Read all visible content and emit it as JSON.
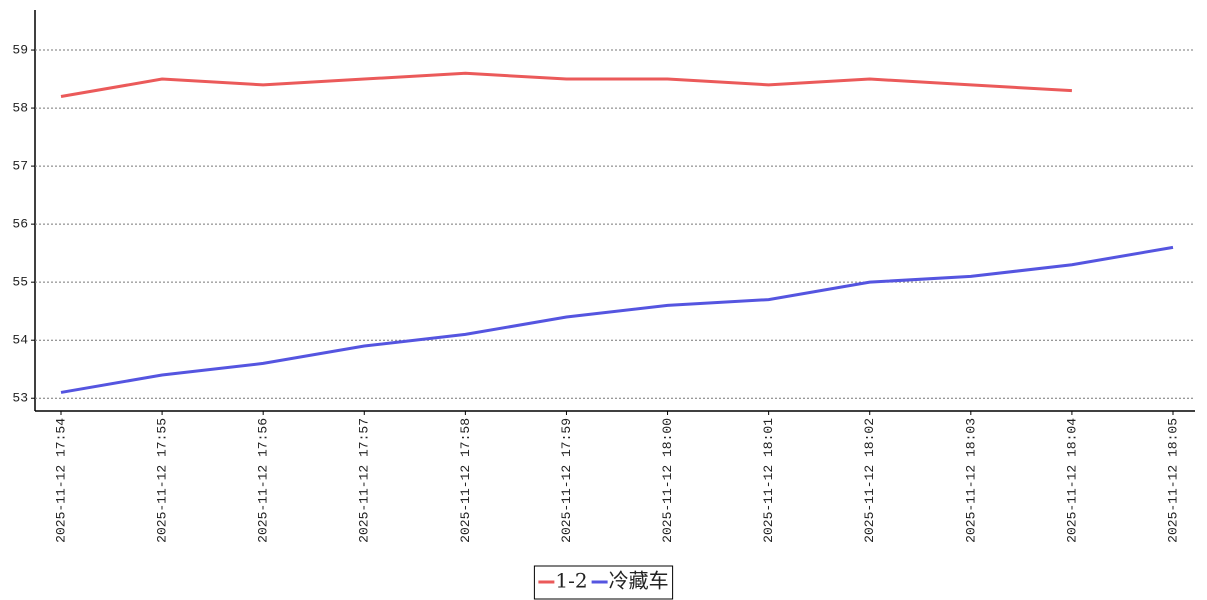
{
  "chart_data": {
    "type": "line",
    "categories": [
      "2025-11-12 17:54",
      "2025-11-12 17:55",
      "2025-11-12 17:56",
      "2025-11-12 17:57",
      "2025-11-12 17:58",
      "2025-11-12 17:59",
      "2025-11-12 18:00",
      "2025-11-12 18:01",
      "2025-11-12 18:02",
      "2025-11-12 18:03",
      "2025-11-12 18:04",
      "2025-11-12 18:05"
    ],
    "series": [
      {
        "name": "1-2",
        "color": "#eb5a5a",
        "values": [
          58.2,
          58.5,
          58.4,
          58.5,
          58.6,
          58.5,
          58.5,
          58.4,
          58.5,
          58.4,
          58.3,
          null
        ]
      },
      {
        "name": "冷藏车",
        "color": "#5555e0",
        "values": [
          53.1,
          53.4,
          53.6,
          53.9,
          54.1,
          54.4,
          54.6,
          54.7,
          55.0,
          55.1,
          55.3,
          55.6
        ]
      }
    ],
    "ylim": [
      52.78,
      59.69
    ],
    "yticks": [
      53,
      54,
      55,
      56,
      57,
      58,
      59
    ],
    "grid": true,
    "legend": "bottom"
  }
}
